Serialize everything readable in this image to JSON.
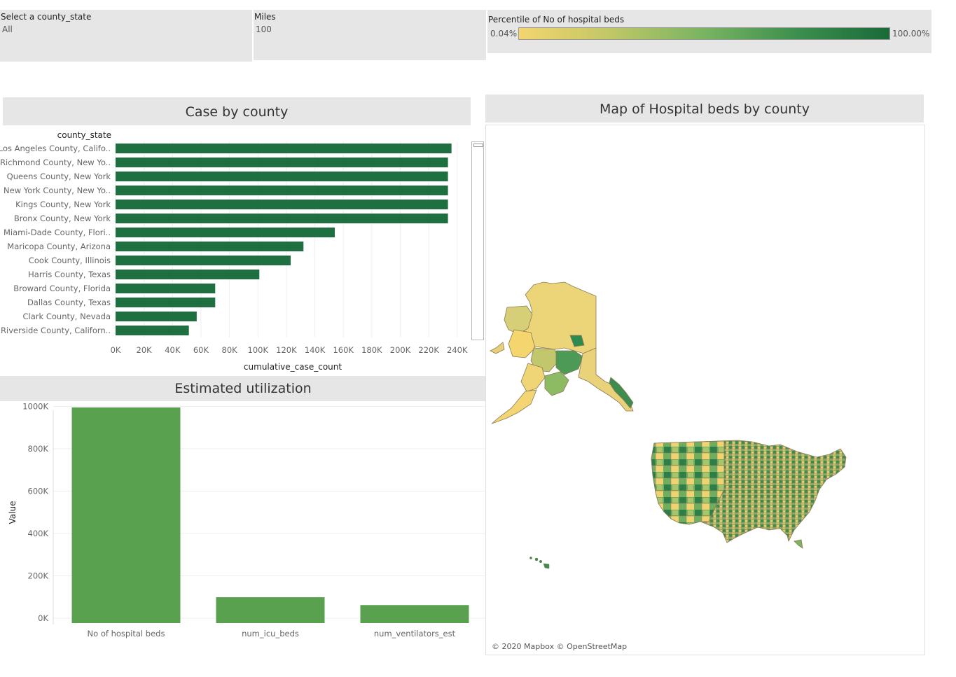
{
  "filters": {
    "county": {
      "title": "Select a county_state",
      "value": "All"
    },
    "miles": {
      "title": "Miles",
      "value": "100"
    },
    "legend": {
      "title": "Percentile of No of hospital beds",
      "min_label": "0.04%",
      "max_label": "100.00%"
    }
  },
  "panels": {
    "case_title": "Case by county",
    "map_title": "Map of Hospital beds by county",
    "util_title": "Estimated utilization",
    "map_attribution": "© 2020 Mapbox © OpenStreetMap"
  },
  "colors": {
    "bar_dark": "#1e7040",
    "bar_medium": "#59a14f",
    "panel_bg": "#e6e6e6",
    "map_low": "#f4d56e",
    "map_high": "#1a6a3a"
  },
  "chart_data": [
    {
      "type": "bar",
      "orientation": "horizontal",
      "title": "Case by county",
      "row_header": "county_state",
      "xlabel": "cumulative_case_count",
      "xlim": [
        0,
        250000
      ],
      "xticks": [
        0,
        20000,
        40000,
        60000,
        80000,
        100000,
        120000,
        140000,
        160000,
        180000,
        200000,
        220000,
        240000
      ],
      "xtick_labels": [
        "0K",
        "20K",
        "40K",
        "60K",
        "80K",
        "100K",
        "120K",
        "140K",
        "160K",
        "180K",
        "200K",
        "220K",
        "240K"
      ],
      "categories": [
        "Los Angeles County, Califo..",
        "Richmond County, New Yo..",
        "Queens County, New York",
        "New York County, New Yo..",
        "Kings County, New York",
        "Bronx County, New York",
        "Miami-Dade County, Flori..",
        "Maricopa County, Arizona",
        "Cook County, Illinois",
        "Harris County, Texas",
        "Broward County, Florida",
        "Dallas County, Texas",
        "Clark County, Nevada",
        "Riverside County, Californ.."
      ],
      "values": [
        236000,
        233500,
        233500,
        233500,
        233500,
        233500,
        154000,
        132000,
        123000,
        101000,
        70000,
        70000,
        57000,
        51500
      ]
    },
    {
      "type": "bar",
      "orientation": "vertical",
      "title": "Estimated utilization",
      "ylabel": "Value",
      "ylim": [
        0,
        1000000
      ],
      "yticks": [
        0,
        200000,
        400000,
        600000,
        800000,
        1000000
      ],
      "ytick_labels": [
        "0K",
        "200K",
        "400K",
        "600K",
        "800K",
        "1000K"
      ],
      "categories": [
        "No of hospital beds",
        "num_icu_beds",
        "num_ventilators_est"
      ],
      "values": [
        995000,
        99000,
        62000
      ]
    }
  ]
}
